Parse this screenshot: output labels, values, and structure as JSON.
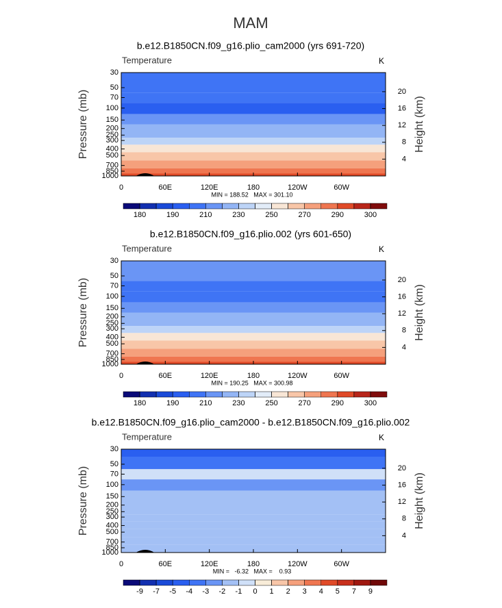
{
  "title": "MAM",
  "chart_data": [
    {
      "type": "contour",
      "title": "b.e12.B1850CN.f09_g16.plio_cam2000 (yrs 691-720)",
      "subtitle": "Temperature",
      "units": "K",
      "ylabel": "Pressure (mb)",
      "y2label": "Height (km)",
      "xlim": [
        0,
        360
      ],
      "xticks": [
        0,
        {
          "value": 60,
          "label": "60E"
        },
        {
          "value": 120,
          "label": "120E"
        },
        180,
        {
          "value": 240,
          "label": "120W"
        },
        {
          "value": 300,
          "label": "60W"
        }
      ],
      "ylim": [
        1000,
        30
      ],
      "log_y": true,
      "yticks": [
        30,
        50,
        70,
        100,
        150,
        200,
        250,
        300,
        400,
        500,
        700,
        850,
        1000
      ],
      "y2ticks": [
        4,
        8,
        12,
        16,
        20
      ],
      "values": [
        205,
        208,
        205,
        198,
        212,
        220,
        228,
        238,
        252,
        262,
        278,
        287,
        293
      ],
      "stats": "MIN = 188.52   MAX = 301.10",
      "colorbar": {
        "levels": [
          180,
          {
            "value": 185,
            "label": null
          },
          190,
          {
            "value": 200,
            "label": null
          },
          210,
          {
            "value": 220,
            "label": null
          },
          230,
          {
            "value": 240,
            "label": null
          },
          250,
          {
            "value": 260,
            "label": null
          },
          270,
          {
            "value": 280,
            "label": null
          },
          290,
          {
            "value": 295,
            "label": null
          },
          300
        ],
        "colors": [
          "#0a0a78",
          "#1230b0",
          "#1a4ad8",
          "#2a5ff0",
          "#3f74f5",
          "#6a95f5",
          "#93b5f5",
          "#bdd4f7",
          "#e2ecf8",
          "#f8e6d6",
          "#f8c6a8",
          "#f5a07c",
          "#ef7650",
          "#e04a28",
          "#b8261a",
          "#800c0c"
        ]
      }
    },
    {
      "type": "contour",
      "title": "b.e12.B1850CN.f09_g16.plio.002 (yrs 601-650)",
      "subtitle": "Temperature",
      "units": "K",
      "ylabel": "Pressure (mb)",
      "y2label": "Height (km)",
      "xlim": [
        0,
        360
      ],
      "xticks": [
        0,
        {
          "value": 60,
          "label": "60E"
        },
        {
          "value": 120,
          "label": "120E"
        },
        180,
        {
          "value": 240,
          "label": "120W"
        },
        {
          "value": 300,
          "label": "60W"
        }
      ],
      "ylim": [
        1000,
        30
      ],
      "log_y": true,
      "yticks": [
        30,
        50,
        70,
        100,
        150,
        200,
        250,
        300,
        400,
        500,
        700,
        850,
        1000
      ],
      "y2ticks": [
        4,
        8,
        12,
        16,
        20
      ],
      "values": [
        212,
        212,
        205,
        202,
        212,
        220,
        228,
        238,
        252,
        262,
        278,
        287,
        293
      ],
      "stats": "MIN = 190.25   MAX = 300.98",
      "colorbar": {
        "levels": [
          180,
          {
            "value": 185,
            "label": null
          },
          190,
          {
            "value": 200,
            "label": null
          },
          210,
          {
            "value": 220,
            "label": null
          },
          230,
          {
            "value": 240,
            "label": null
          },
          250,
          {
            "value": 260,
            "label": null
          },
          270,
          {
            "value": 280,
            "label": null
          },
          290,
          {
            "value": 295,
            "label": null
          },
          300
        ],
        "colors": [
          "#0a0a78",
          "#1230b0",
          "#1a4ad8",
          "#2a5ff0",
          "#3f74f5",
          "#6a95f5",
          "#93b5f5",
          "#bdd4f7",
          "#e2ecf8",
          "#f8e6d6",
          "#f8c6a8",
          "#f5a07c",
          "#ef7650",
          "#e04a28",
          "#b8261a",
          "#800c0c"
        ]
      }
    },
    {
      "type": "contour",
      "title": "b.e12.B1850CN.f09_g16.plio_cam2000 - b.e12.B1850CN.f09_g16.plio.002",
      "subtitle": "Temperature",
      "units": "K",
      "ylabel": "Pressure (mb)",
      "y2label": "Height (km)",
      "xlim": [
        0,
        360
      ],
      "xticks": [
        0,
        {
          "value": 60,
          "label": "60E"
        },
        {
          "value": 120,
          "label": "120E"
        },
        180,
        {
          "value": 240,
          "label": "120W"
        },
        {
          "value": 300,
          "label": "60W"
        }
      ],
      "ylim": [
        1000,
        30
      ],
      "log_y": true,
      "yticks": [
        30,
        50,
        70,
        100,
        150,
        200,
        250,
        300,
        400,
        500,
        700,
        850,
        1000
      ],
      "y2ticks": [
        4,
        8,
        12,
        16,
        20
      ],
      "values": [
        -4.5,
        -3.5,
        -0.5,
        -2.5,
        -1.5,
        -1.5,
        -1.5,
        -1.5,
        -1.5,
        -1.5,
        -1.5,
        -1.5,
        -1.5
      ],
      "stats": "MIN =   -6.32   MAX =    0.93",
      "colorbar": {
        "levels": [
          -9,
          -7,
          -5,
          -4,
          -3,
          -2,
          -1,
          0,
          1,
          2,
          3,
          4,
          5,
          7,
          9
        ],
        "colors": [
          "#0a0a78",
          "#1230b0",
          "#1a4ad8",
          "#2a5ff0",
          "#3f74f5",
          "#6a95f5",
          "#a3c0f5",
          "#d0e0f8",
          "#f8ecd8",
          "#f8c6a8",
          "#f5a07c",
          "#ef7650",
          "#e04a28",
          "#c8301c",
          "#a01810",
          "#700808"
        ]
      }
    }
  ]
}
